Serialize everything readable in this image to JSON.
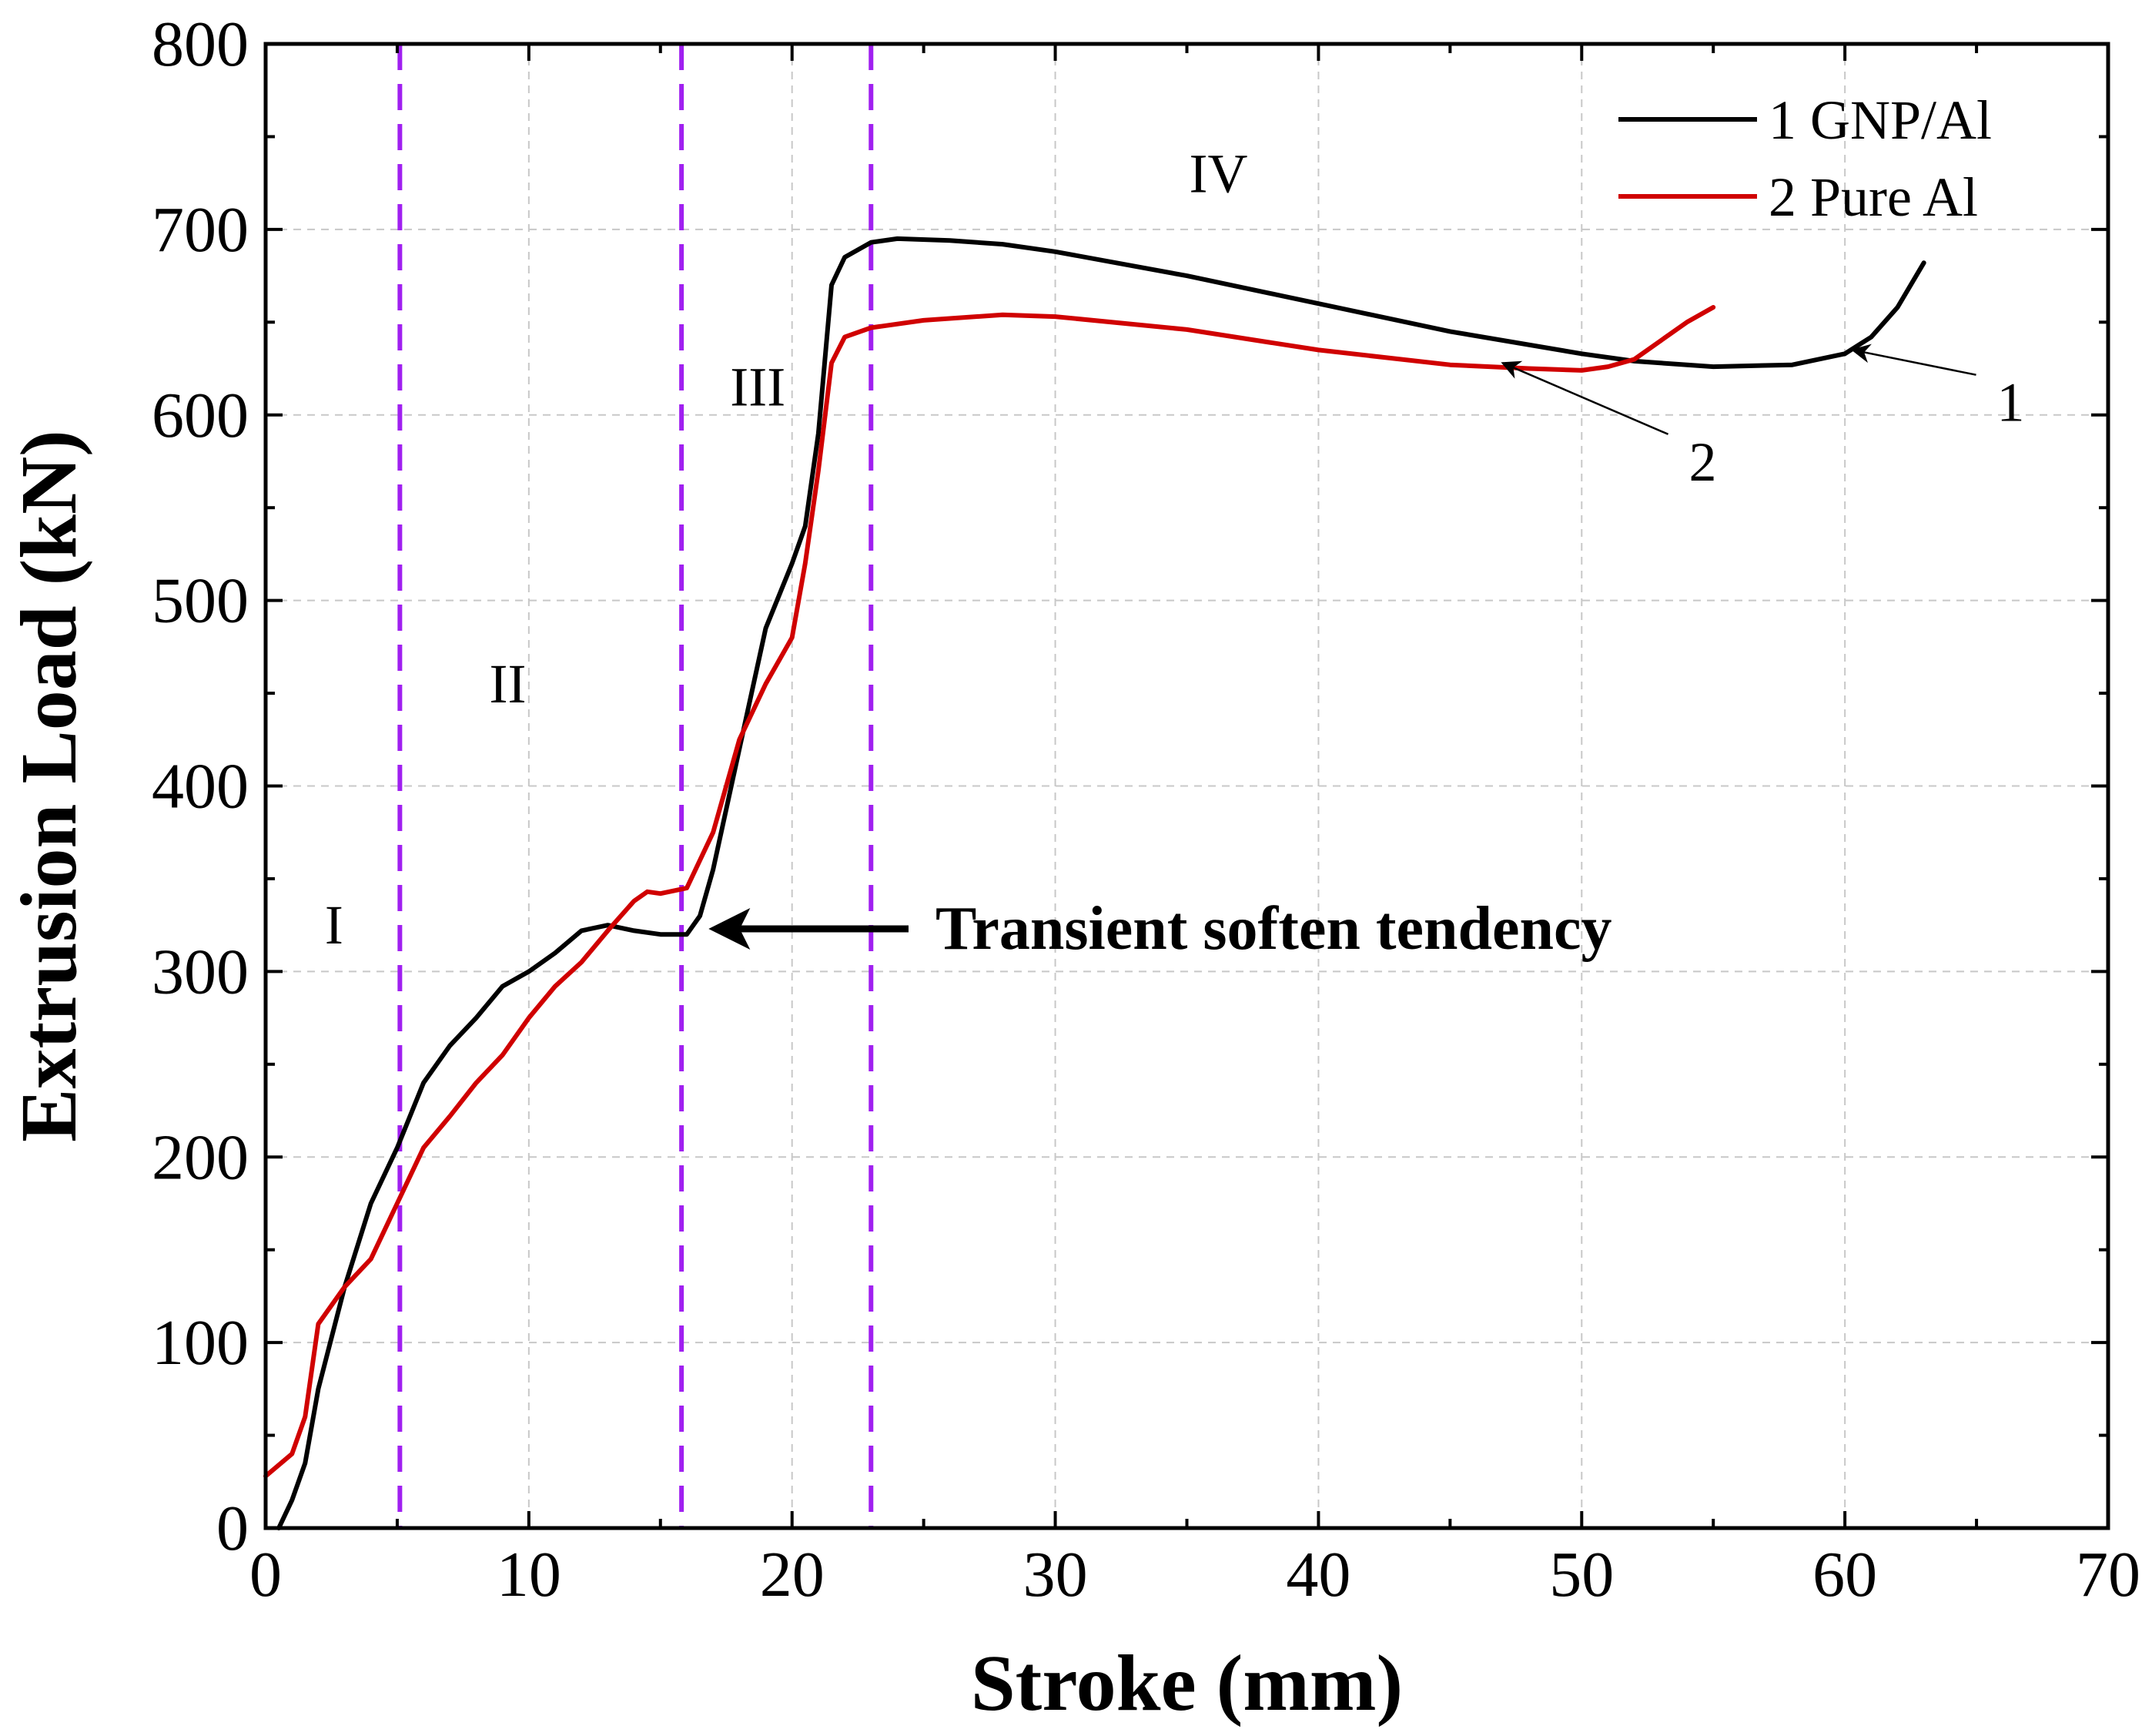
{
  "chart_data": {
    "type": "line",
    "title": "",
    "xlabel": "Stroke (mm)",
    "ylabel": "Extrusion Load (kN)",
    "xlim": [
      0,
      70
    ],
    "ylim": [
      0,
      800
    ],
    "xticks": [
      0,
      10,
      20,
      30,
      40,
      50,
      60,
      70
    ],
    "yticks": [
      0,
      100,
      200,
      300,
      400,
      500,
      600,
      700,
      800
    ],
    "grid": true,
    "legend_position": "top-right",
    "series": [
      {
        "name": "1 GNP/Al",
        "color": "#000000",
        "points": [
          [
            0.5,
            0
          ],
          [
            1,
            15
          ],
          [
            1.5,
            35
          ],
          [
            2,
            75
          ],
          [
            3,
            130
          ],
          [
            4,
            175
          ],
          [
            5,
            205
          ],
          [
            6,
            240
          ],
          [
            7,
            260
          ],
          [
            8,
            275
          ],
          [
            9,
            292
          ],
          [
            10,
            300
          ],
          [
            11,
            310
          ],
          [
            12,
            322
          ],
          [
            13,
            325
          ],
          [
            14,
            322
          ],
          [
            15,
            320
          ],
          [
            16,
            320
          ],
          [
            16.5,
            330
          ],
          [
            17,
            355
          ],
          [
            18,
            420
          ],
          [
            19,
            485
          ],
          [
            20,
            520
          ],
          [
            20.5,
            540
          ],
          [
            21,
            590
          ],
          [
            21.5,
            670
          ],
          [
            22,
            685
          ],
          [
            23,
            693
          ],
          [
            24,
            695
          ],
          [
            26,
            694
          ],
          [
            28,
            692
          ],
          [
            30,
            688
          ],
          [
            35,
            675
          ],
          [
            40,
            660
          ],
          [
            45,
            645
          ],
          [
            50,
            633
          ],
          [
            52,
            629
          ],
          [
            55,
            626
          ],
          [
            58,
            627
          ],
          [
            60,
            633
          ],
          [
            61,
            642
          ],
          [
            62,
            658
          ],
          [
            63,
            682
          ]
        ]
      },
      {
        "name": "2 Pure  Al",
        "color": "#d00000",
        "points": [
          [
            0,
            28
          ],
          [
            1,
            40
          ],
          [
            1.5,
            60
          ],
          [
            2,
            110
          ],
          [
            3,
            130
          ],
          [
            4,
            145
          ],
          [
            5,
            175
          ],
          [
            6,
            205
          ],
          [
            7,
            222
          ],
          [
            8,
            240
          ],
          [
            9,
            255
          ],
          [
            10,
            275
          ],
          [
            11,
            292
          ],
          [
            12,
            305
          ],
          [
            13,
            322
          ],
          [
            14,
            338
          ],
          [
            14.5,
            343
          ],
          [
            15,
            342
          ],
          [
            16,
            345
          ],
          [
            17,
            375
          ],
          [
            18,
            425
          ],
          [
            19,
            455
          ],
          [
            20,
            480
          ],
          [
            20.5,
            520
          ],
          [
            21,
            570
          ],
          [
            21.5,
            628
          ],
          [
            22,
            642
          ],
          [
            23,
            647
          ],
          [
            25,
            651
          ],
          [
            28,
            654
          ],
          [
            30,
            653
          ],
          [
            35,
            646
          ],
          [
            40,
            635
          ],
          [
            45,
            627
          ],
          [
            48,
            625
          ],
          [
            50,
            624
          ],
          [
            51,
            626
          ],
          [
            52,
            630
          ],
          [
            53,
            640
          ],
          [
            54,
            650
          ],
          [
            55,
            658
          ]
        ]
      }
    ],
    "region_boundaries": [
      5.1,
      15.8,
      23.0
    ],
    "boundary_color": "#a020f0",
    "region_labels": [
      {
        "text": "I",
        "x": 2.6,
        "y": 315
      },
      {
        "text": "II",
        "x": 9.2,
        "y": 445
      },
      {
        "text": "III",
        "x": 18.7,
        "y": 605
      },
      {
        "text": "IV",
        "x": 36.2,
        "y": 720
      }
    ],
    "annotations": [
      {
        "text": "Transient soften tendency",
        "arrow_to": [
          16.8,
          323
        ],
        "text_at": [
          25.5,
          323
        ]
      },
      {
        "text": "1",
        "arrow_to": [
          60.3,
          635
        ],
        "text_at": [
          66.3,
          605
        ]
      },
      {
        "text": "2",
        "arrow_to": [
          47,
          628
        ],
        "text_at": [
          54.6,
          573
        ]
      }
    ]
  }
}
